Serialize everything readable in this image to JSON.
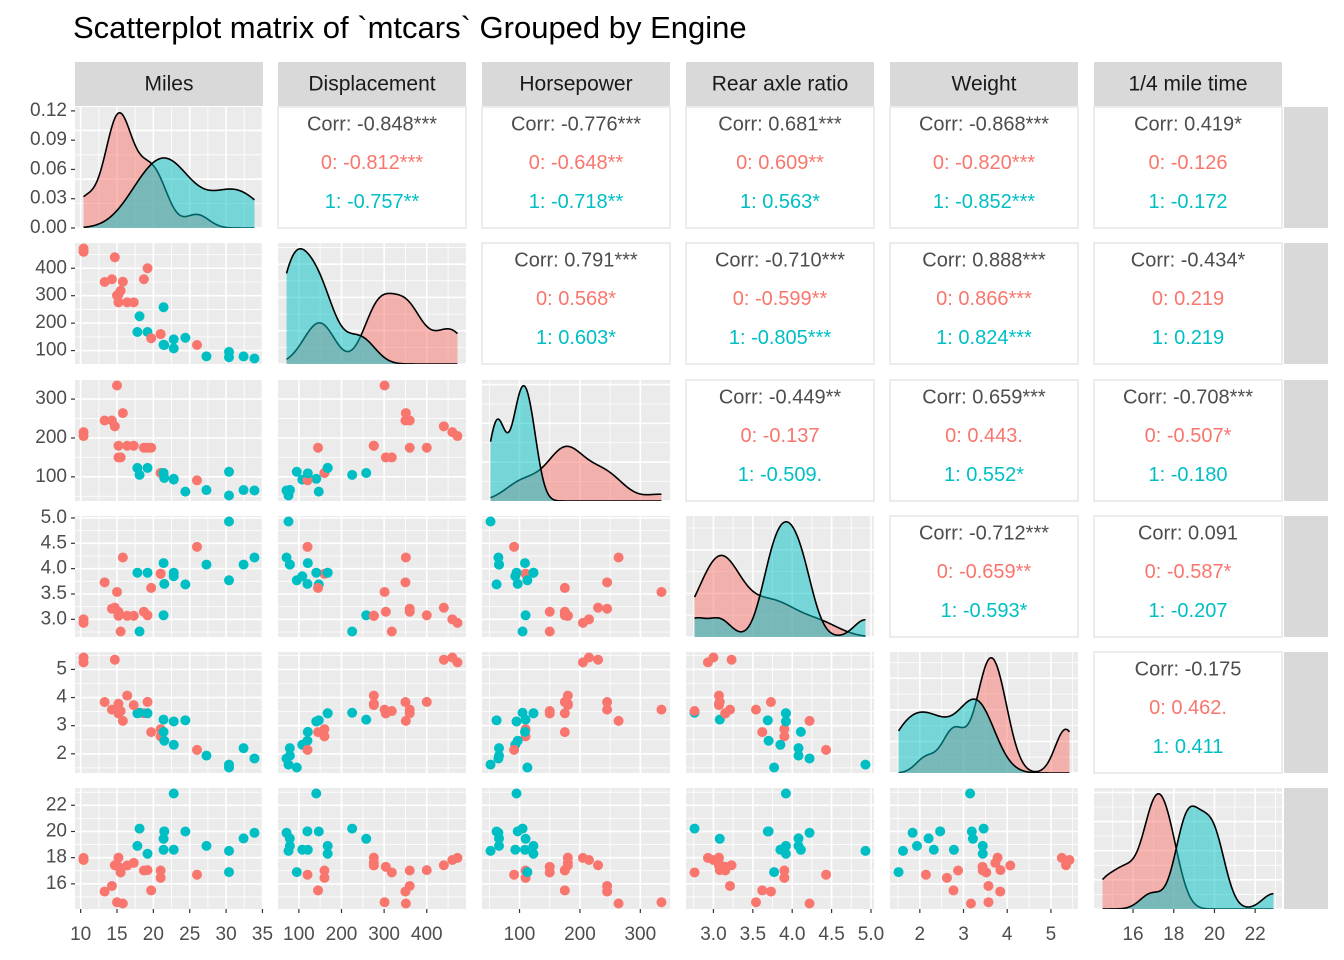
{
  "chart_data": {
    "type": "scatter-matrix",
    "title": "Scatterplot matrix of `mtcars` Grouped by Engine",
    "group_levels": [
      "0",
      "1"
    ],
    "group_colors": {
      "0": "#F8766D",
      "1": "#00BFC4"
    },
    "group": [
      0,
      0,
      1,
      1,
      0,
      1,
      0,
      1,
      1,
      1,
      1,
      0,
      0,
      0,
      0,
      0,
      0,
      1,
      1,
      1,
      1,
      0,
      0,
      0,
      0,
      1,
      0,
      1,
      0,
      0,
      0,
      1
    ],
    "density_axis_ticks": [
      "0.00",
      "0.03",
      "0.06",
      "0.09",
      "0.12"
    ],
    "variables": [
      {
        "label": "Miles",
        "ticks": [
          "10",
          "15",
          "20",
          "25",
          "30",
          "35"
        ],
        "values": [
          21.0,
          21.0,
          22.8,
          21.4,
          18.7,
          18.1,
          14.3,
          24.4,
          22.8,
          19.2,
          17.8,
          16.4,
          17.3,
          15.2,
          10.4,
          10.4,
          14.7,
          32.4,
          30.4,
          33.9,
          21.5,
          15.5,
          15.2,
          13.3,
          19.2,
          27.3,
          26.0,
          30.4,
          15.8,
          19.7,
          15.0,
          21.4
        ]
      },
      {
        "label": "Displacement",
        "ticks": [
          "100",
          "200",
          "300",
          "400"
        ],
        "values": [
          160,
          160,
          108,
          258,
          360,
          225,
          360,
          146.7,
          140.8,
          167.6,
          167.6,
          275.8,
          275.8,
          275.8,
          472,
          460,
          440,
          78.7,
          75.7,
          71.1,
          120.1,
          318,
          304,
          350,
          400,
          79,
          120.3,
          95.1,
          351,
          145,
          301,
          121
        ]
      },
      {
        "label": "Horsepower",
        "ticks": [
          "100",
          "200",
          "300"
        ],
        "values": [
          110,
          110,
          93,
          110,
          175,
          105,
          245,
          62,
          95,
          123,
          123,
          180,
          180,
          180,
          205,
          215,
          230,
          66,
          52,
          65,
          97,
          150,
          150,
          245,
          175,
          66,
          91,
          113,
          264,
          175,
          335,
          109
        ]
      },
      {
        "label": "Rear axle ratio",
        "ticks": [
          "3.0",
          "3.5",
          "4.0",
          "4.5",
          "5.0"
        ],
        "values": [
          3.9,
          3.9,
          3.85,
          3.08,
          3.15,
          2.76,
          3.21,
          3.69,
          3.92,
          3.92,
          3.92,
          3.07,
          3.07,
          3.07,
          2.93,
          3.0,
          3.23,
          4.08,
          4.93,
          4.22,
          3.7,
          2.76,
          3.15,
          3.73,
          3.08,
          4.08,
          4.43,
          3.77,
          4.22,
          3.62,
          3.54,
          4.11
        ]
      },
      {
        "label": "Weight",
        "ticks": [
          "2",
          "3",
          "4",
          "5"
        ],
        "values": [
          2.62,
          2.875,
          2.32,
          3.215,
          3.44,
          3.46,
          3.57,
          3.19,
          3.15,
          3.44,
          3.44,
          4.07,
          3.73,
          3.78,
          5.25,
          5.424,
          5.345,
          2.2,
          1.615,
          1.835,
          2.465,
          3.52,
          3.435,
          3.84,
          3.845,
          1.935,
          2.14,
          1.513,
          3.17,
          2.77,
          3.57,
          2.78
        ]
      },
      {
        "label": "1/4 mile time",
        "ticks": [
          "16",
          "18",
          "20",
          "22"
        ],
        "values": [
          16.46,
          17.02,
          18.61,
          19.44,
          17.02,
          20.22,
          15.84,
          20.0,
          22.9,
          18.3,
          18.9,
          17.4,
          17.6,
          18.0,
          17.98,
          17.82,
          17.42,
          19.47,
          18.52,
          19.9,
          20.01,
          16.87,
          17.3,
          15.41,
          17.05,
          18.9,
          16.7,
          16.9,
          14.5,
          15.5,
          14.6,
          18.6
        ]
      }
    ],
    "correlations": [
      {
        "row": 0,
        "col": 1,
        "lines": [
          "Corr: -0.848***",
          "0: -0.812***",
          "1: -0.757**"
        ]
      },
      {
        "row": 0,
        "col": 2,
        "lines": [
          "Corr: -0.776***",
          "0: -0.648**",
          "1: -0.718**"
        ]
      },
      {
        "row": 0,
        "col": 3,
        "lines": [
          "Corr: 0.681***",
          "0: 0.609**",
          "1: 0.563*"
        ]
      },
      {
        "row": 0,
        "col": 4,
        "lines": [
          "Corr: -0.868***",
          "0: -0.820***",
          "1: -0.852***"
        ]
      },
      {
        "row": 0,
        "col": 5,
        "lines": [
          "Corr: 0.419*",
          "0: -0.126",
          "1: -0.172"
        ]
      },
      {
        "row": 1,
        "col": 2,
        "lines": [
          "Corr: 0.791***",
          "0: 0.568*",
          "1: 0.603*"
        ]
      },
      {
        "row": 1,
        "col": 3,
        "lines": [
          "Corr: -0.710***",
          "0: -0.599**",
          "1: -0.805***"
        ]
      },
      {
        "row": 1,
        "col": 4,
        "lines": [
          "Corr: 0.888***",
          "0: 0.866***",
          "1: 0.824***"
        ]
      },
      {
        "row": 1,
        "col": 5,
        "lines": [
          "Corr: -0.434*",
          "0: 0.219",
          "1: 0.219"
        ]
      },
      {
        "row": 2,
        "col": 3,
        "lines": [
          "Corr: -0.449**",
          "0: -0.137",
          "1: -0.509."
        ]
      },
      {
        "row": 2,
        "col": 4,
        "lines": [
          "Corr: 0.659***",
          "0: 0.443.",
          "1: 0.552*"
        ]
      },
      {
        "row": 2,
        "col": 5,
        "lines": [
          "Corr: -0.708***",
          "0: -0.507*",
          "1: -0.180"
        ]
      },
      {
        "row": 3,
        "col": 4,
        "lines": [
          "Corr: -0.712***",
          "0: -0.659**",
          "1: -0.593*"
        ]
      },
      {
        "row": 3,
        "col": 5,
        "lines": [
          "Corr: 0.091",
          "0: -0.587*",
          "1: -0.207"
        ]
      },
      {
        "row": 4,
        "col": 5,
        "lines": [
          "Corr: -0.175",
          "0: 0.462.",
          "1: 0.411"
        ]
      }
    ]
  }
}
